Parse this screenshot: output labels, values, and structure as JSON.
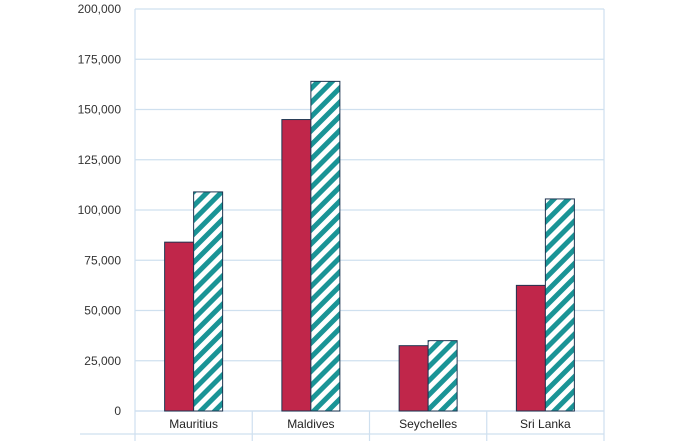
{
  "chart_data": {
    "type": "bar",
    "categories": [
      "Mauritius",
      "Maldives",
      "Seychelles",
      "Sri Lanka"
    ],
    "series": [
      {
        "values": [
          84000,
          145000,
          32500,
          62500
        ],
        "color": "#c0264a",
        "fill_style": "solid"
      },
      {
        "values": [
          109000,
          164000,
          35000,
          105500
        ],
        "color": "#1a9496",
        "fill_style": "diagonal-hatch"
      }
    ],
    "yticks": [
      "0",
      "25,000",
      "50,000",
      "75,000",
      "100,000",
      "125,000",
      "150,000",
      "175,000",
      "200,000"
    ],
    "ylim": [
      0,
      200000
    ],
    "grid": true,
    "grid_color": "#cfe0ef",
    "title": "",
    "xlabel": "",
    "ylabel": ""
  }
}
